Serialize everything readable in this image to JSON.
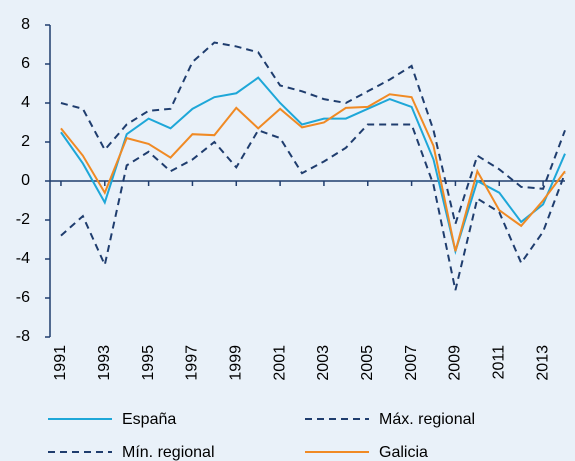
{
  "chart_data": {
    "type": "line",
    "x": [
      1991,
      1992,
      1993,
      1994,
      1995,
      1996,
      1997,
      1998,
      1999,
      2000,
      2001,
      2002,
      2003,
      2004,
      2005,
      2006,
      2007,
      2008,
      2009,
      2010,
      2011,
      2012,
      2013,
      2014
    ],
    "xlim": [
      1990.5,
      2014
    ],
    "xticks": [
      1991,
      1993,
      1995,
      1997,
      1999,
      2001,
      2003,
      2005,
      2007,
      2009,
      2011,
      2013
    ],
    "ylim": [
      -8,
      8
    ],
    "yticks": [
      -8,
      -6,
      -4,
      -2,
      0,
      2,
      4,
      6,
      8
    ],
    "series": [
      {
        "name": "España",
        "color": "#1ea7d8",
        "dash": false,
        "values": [
          2.5,
          0.9,
          -1.1,
          2.4,
          3.2,
          2.7,
          3.7,
          4.3,
          4.5,
          5.3,
          4.0,
          2.9,
          3.2,
          3.2,
          3.7,
          4.2,
          3.8,
          1.1,
          -3.6,
          0.0,
          -0.6,
          -2.1,
          -1.2,
          1.4
        ]
      },
      {
        "name": "Máx. regional",
        "color": "#1f3d6e",
        "dash": true,
        "values": [
          4.0,
          3.7,
          1.6,
          2.9,
          3.6,
          3.7,
          6.1,
          7.1,
          6.9,
          6.6,
          4.9,
          4.6,
          4.2,
          4.0,
          4.6,
          5.2,
          5.9,
          2.6,
          -2.2,
          1.3,
          0.6,
          -0.3,
          -0.4,
          2.6
        ]
      },
      {
        "name": "Mín. regional",
        "color": "#1f3d6e",
        "dash": true,
        "values": [
          -2.8,
          -1.8,
          -4.3,
          0.8,
          1.5,
          0.5,
          1.1,
          2.0,
          0.7,
          2.6,
          2.2,
          0.4,
          1.0,
          1.7,
          2.9,
          2.9,
          2.9,
          -0.2,
          -5.6,
          -0.9,
          -1.6,
          -4.2,
          -2.6,
          0.4
        ]
      },
      {
        "name": "Galicia",
        "color": "#f08a24",
        "dash": false,
        "values": [
          2.7,
          1.3,
          -0.6,
          2.2,
          1.9,
          1.2,
          2.4,
          2.35,
          3.75,
          2.7,
          3.7,
          2.75,
          3.0,
          3.75,
          3.8,
          4.45,
          4.3,
          1.8,
          -3.6,
          0.5,
          -1.5,
          -2.3,
          -1.0,
          0.5
        ]
      }
    ]
  }
}
